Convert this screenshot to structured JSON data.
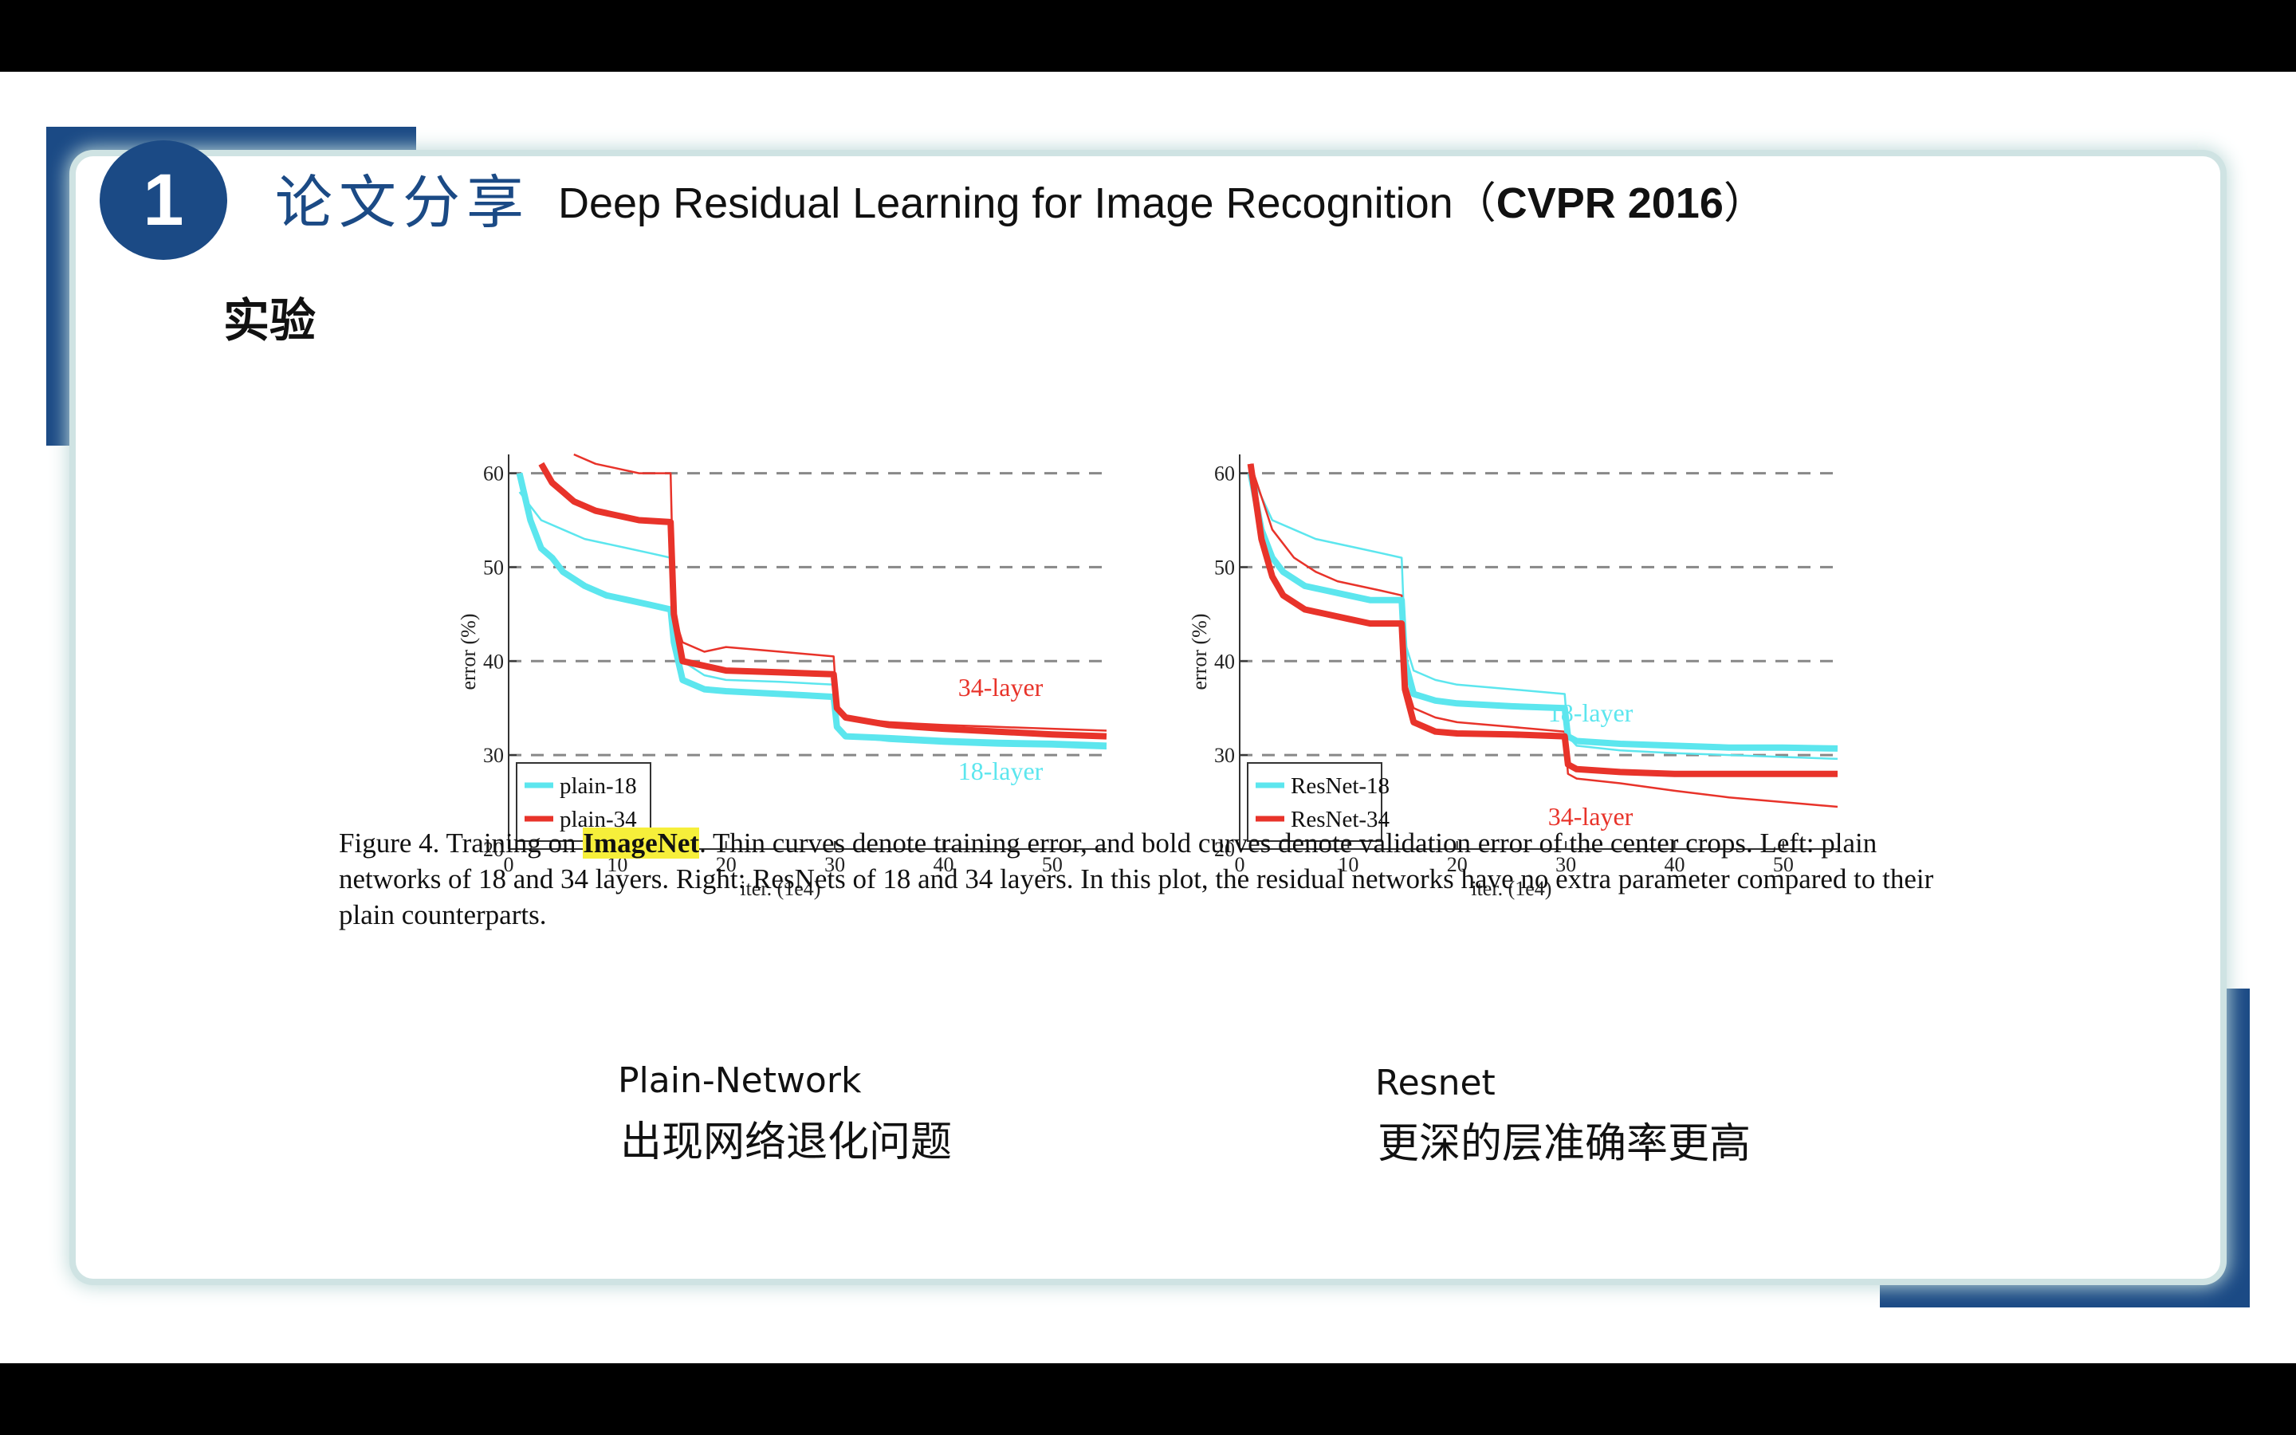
{
  "header": {
    "number": "1",
    "title_cn": "论文分享",
    "title_en": "Deep Residual Learning for Image Recognition",
    "venue": "CVPR 2016"
  },
  "section_title": "实验",
  "chart_data": [
    {
      "type": "line",
      "xlabel": "iter. (1e4)",
      "ylabel": "error (%)",
      "xlim": [
        0,
        55
      ],
      "ylim": [
        20,
        62
      ],
      "xticks": [
        0,
        10,
        20,
        30,
        40,
        50
      ],
      "yticks": [
        20,
        30,
        40,
        50,
        60
      ],
      "grid": "dashed horizontal",
      "legend_position": "bottom-left",
      "legend": [
        "plain-18",
        "plain-34"
      ],
      "annotations": [
        "34-layer",
        "18-layer"
      ],
      "series": [
        {
          "name": "plain-18",
          "color": "#5ce6ee",
          "weight": "bold",
          "x": [
            1,
            2,
            3,
            4,
            5,
            7,
            9,
            11,
            13,
            14.9,
            15.2,
            16,
            18,
            20,
            25,
            29.9,
            30.2,
            31,
            35,
            40,
            45,
            50,
            55
          ],
          "y": [
            60,
            55,
            52,
            51,
            49.5,
            48,
            47,
            46.5,
            46,
            45.5,
            42,
            38,
            37,
            36.8,
            36.5,
            36.2,
            33,
            32,
            31.8,
            31.5,
            31.3,
            31.2,
            31
          ]
        },
        {
          "name": "plain-34",
          "color": "#e8332a",
          "weight": "bold",
          "x": [
            3,
            4,
            5,
            6,
            8,
            10,
            12,
            14.9,
            15.2,
            16,
            18,
            20,
            25,
            29.9,
            30.2,
            31,
            35,
            40,
            45,
            50,
            55
          ],
          "y": [
            61,
            59,
            58,
            57,
            56,
            55.5,
            55,
            54.8,
            45,
            40,
            39.5,
            39,
            38.8,
            38.6,
            35,
            34,
            33.2,
            32.8,
            32.5,
            32.2,
            32
          ]
        },
        {
          "name": "plain-18 train",
          "color": "#5ce6ee",
          "weight": "thin",
          "x": [
            1,
            3,
            5,
            7,
            9,
            11,
            13,
            14.9,
            15.2,
            16,
            18,
            20,
            25,
            29.9,
            30.2,
            31,
            35,
            40,
            45,
            50,
            55
          ],
          "y": [
            58,
            55,
            54,
            53,
            52.5,
            52,
            51.5,
            51,
            44,
            40,
            38.5,
            38,
            37.8,
            37.5,
            33,
            32,
            31.5,
            31.2,
            31,
            30.9,
            30.7
          ]
        },
        {
          "name": "plain-34 train",
          "color": "#e8332a",
          "weight": "thin",
          "x": [
            6,
            8,
            10,
            12,
            14.9,
            15.2,
            16,
            18,
            20,
            25,
            29.9,
            30.2,
            31,
            35,
            40,
            45,
            50,
            55
          ],
          "y": [
            62,
            61,
            60.5,
            60,
            60,
            45,
            42,
            41,
            41.5,
            41,
            40.5,
            35,
            34,
            33.5,
            33.2,
            33,
            32.8,
            32.6
          ]
        }
      ]
    },
    {
      "type": "line",
      "xlabel": "iter. (1e4)",
      "ylabel": "error (%)",
      "xlim": [
        0,
        55
      ],
      "ylim": [
        20,
        62
      ],
      "xticks": [
        0,
        10,
        20,
        30,
        40,
        50
      ],
      "yticks": [
        20,
        30,
        40,
        50,
        60
      ],
      "grid": "dashed horizontal",
      "legend_position": "bottom-left",
      "legend": [
        "ResNet-18",
        "ResNet-34"
      ],
      "annotations": [
        "18-layer",
        "34-layer"
      ],
      "series": [
        {
          "name": "ResNet-18",
          "color": "#5ce6ee",
          "weight": "bold",
          "x": [
            1,
            2,
            3,
            4,
            6,
            8,
            10,
            12,
            14.9,
            15.2,
            16,
            18,
            20,
            25,
            29.9,
            30.2,
            31,
            35,
            40,
            45,
            50,
            55
          ],
          "y": [
            60,
            54,
            51,
            49.5,
            48,
            47.5,
            47,
            46.5,
            46.5,
            40,
            36.5,
            35.8,
            35.5,
            35.2,
            35,
            32,
            31.5,
            31.2,
            31,
            30.8,
            30.8,
            30.7
          ]
        },
        {
          "name": "ResNet-34",
          "color": "#e8332a",
          "weight": "bold",
          "x": [
            1,
            2,
            3,
            4,
            6,
            8,
            10,
            12,
            14.9,
            15.2,
            16,
            18,
            20,
            25,
            29.9,
            30.2,
            31,
            35,
            40,
            45,
            50,
            55
          ],
          "y": [
            61,
            53,
            49,
            47,
            45.5,
            45,
            44.5,
            44,
            44,
            37,
            33.5,
            32.5,
            32.3,
            32.2,
            32,
            29,
            28.5,
            28.2,
            28,
            28,
            28,
            28
          ]
        },
        {
          "name": "ResNet-18 train",
          "color": "#5ce6ee",
          "weight": "thin",
          "x": [
            1,
            3,
            5,
            7,
            9,
            11,
            13,
            14.9,
            15.2,
            16,
            18,
            20,
            25,
            29.9,
            30.2,
            31,
            35,
            40,
            45,
            50,
            55
          ],
          "y": [
            60,
            55,
            54,
            53,
            52.5,
            52,
            51.5,
            51,
            42,
            39,
            38,
            37.5,
            37,
            36.5,
            32,
            31,
            30.5,
            30.2,
            30,
            29.8,
            29.6
          ]
        },
        {
          "name": "ResNet-34 train",
          "color": "#e8332a",
          "weight": "thin",
          "x": [
            1,
            3,
            5,
            7,
            9,
            11,
            13,
            14.9,
            15.2,
            16,
            18,
            20,
            25,
            29.9,
            30.2,
            31,
            35,
            40,
            45,
            50,
            55
          ],
          "y": [
            61,
            54,
            51,
            49.5,
            48.5,
            48,
            47.5,
            47,
            38,
            35,
            34,
            33.5,
            33,
            32.5,
            28,
            27.5,
            27,
            26.2,
            25.5,
            25,
            24.5
          ]
        }
      ]
    }
  ],
  "figure_caption": {
    "prefix": "Figure 4. Training on ",
    "highlight": "ImageNet",
    "rest": ". Thin curves denote training error, and bold curves denote validation error of the center crops. Left: plain networks of 18 and 34 layers. Right: ResNets of 18 and 34 layers. In this plot, the residual networks have no extra parameter compared to their plain counterparts."
  },
  "notes": {
    "left_title": "Plain-Network",
    "left_desc": "出现网络退化问题",
    "right_title": "Resnet",
    "right_desc": "更深的层准确率更高"
  }
}
